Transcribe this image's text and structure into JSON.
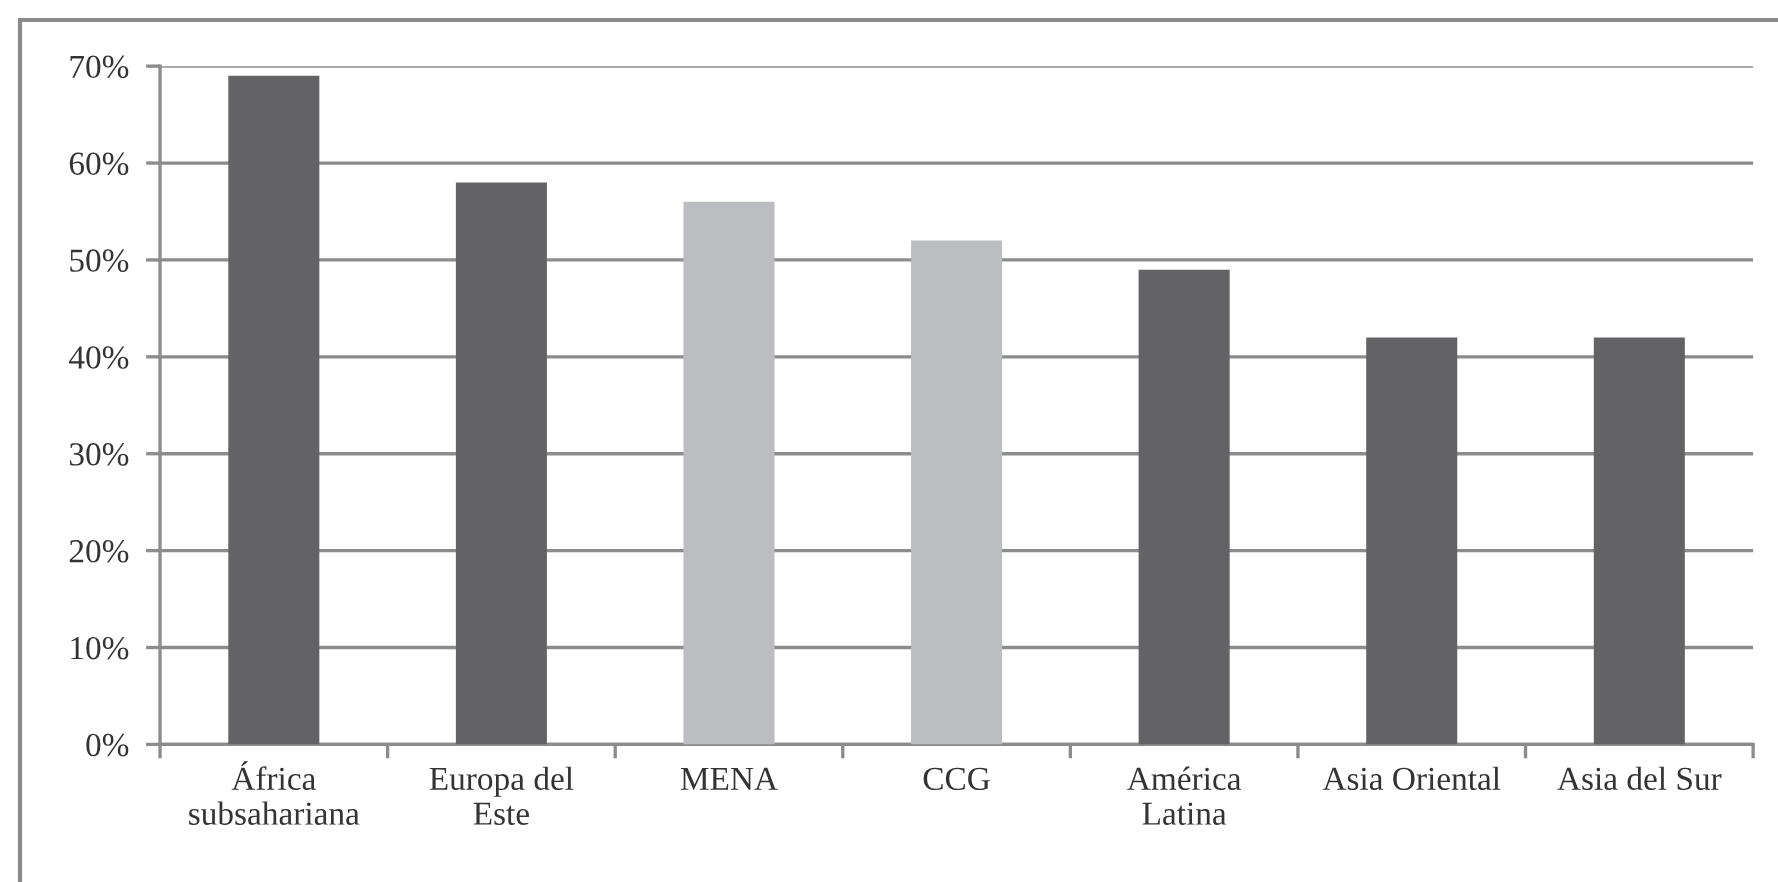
{
  "chart_data": {
    "type": "bar",
    "categories": [
      "África\nsubsahariana",
      "Europa del\nEste",
      "MENA",
      "CCG",
      "América\nLatina",
      "Asia Oriental",
      "Asia del Sur"
    ],
    "values": [
      69,
      58,
      56,
      52,
      49,
      42,
      42
    ],
    "colors": [
      "#636365",
      "#636365",
      "#bcbdc0",
      "#bcbdc0",
      "#636365",
      "#636365",
      "#636365"
    ],
    "ylim": [
      0,
      70
    ],
    "yticks": [
      {
        "value": 0,
        "label": "0%"
      },
      {
        "value": 10,
        "label": "10%"
      },
      {
        "value": 20,
        "label": "20%"
      },
      {
        "value": 30,
        "label": "30%"
      },
      {
        "value": 40,
        "label": "40%"
      },
      {
        "value": 50,
        "label": "50%"
      },
      {
        "value": 60,
        "label": "60%"
      },
      {
        "value": 70,
        "label": "70%"
      }
    ],
    "grid": "y"
  }
}
